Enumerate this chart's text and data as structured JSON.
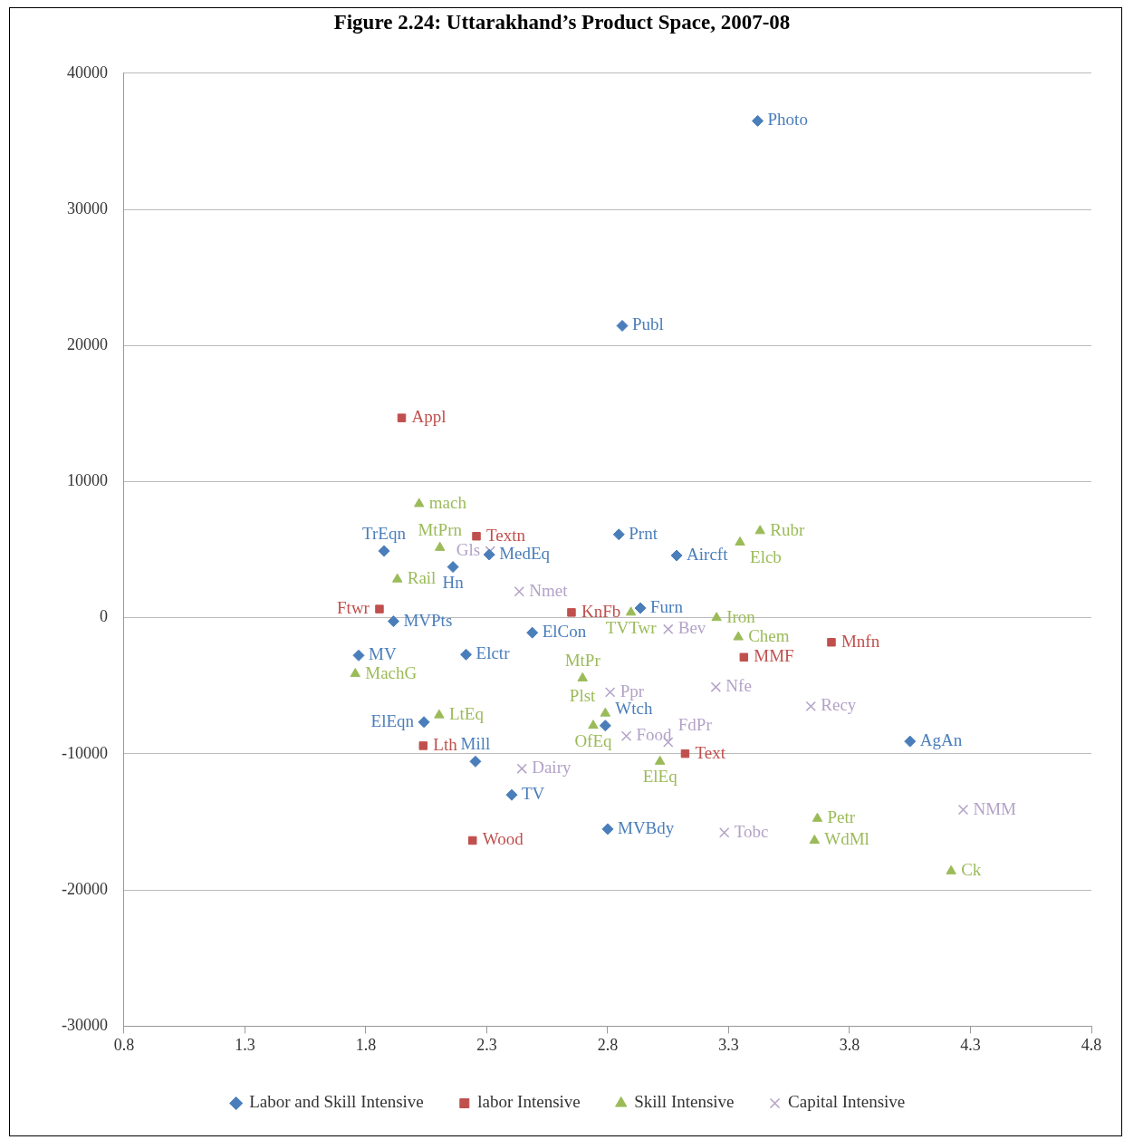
{
  "chart_data": {
    "type": "scatter",
    "title": "Figure 2.24: Uttarakhand’s Product Space, 2007-08",
    "xlim": [
      0.8,
      4.8
    ],
    "xticks": [
      0.8,
      1.3,
      1.8,
      2.3,
      2.8,
      3.3,
      3.8,
      4.3,
      4.8
    ],
    "ylim": [
      -30000,
      40000
    ],
    "yticks": [
      -30000,
      -20000,
      -10000,
      0,
      10000,
      20000,
      30000,
      40000
    ],
    "grid": "y",
    "legend": "bottom",
    "series": [
      {
        "name": "Labor and Skill Intensive",
        "color": "#4a7ebb",
        "marker": "diamond",
        "x": [
          3.42,
          2.86,
          1.875,
          2.16,
          2.31,
          2.846,
          3.085,
          2.935,
          1.914,
          2.488,
          1.77,
          2.214,
          2.04,
          2.79,
          2.253,
          2.403,
          2.8,
          4.05
        ],
        "values": [
          36500,
          21450,
          4900,
          3735,
          4640,
          6120,
          4570,
          710,
          -260,
          -1095,
          -2770,
          -2700,
          -7660,
          -7920,
          -10560,
          -13010,
          -15520,
          -9080
        ],
        "value_labels": [
          "Photo",
          "Publ",
          "TrEqn",
          "Hn",
          "MedEq",
          "Prnt",
          "Aircft",
          "Furn",
          "MVPts",
          "ElCon",
          "MV",
          "Elctr",
          "ElEqn",
          "Wtch",
          "Mill",
          "TV",
          "MVBdy",
          "AgAn"
        ]
      },
      {
        "name": "labor Intensive",
        "color": "#c0504d",
        "marker": "square",
        "x": [
          1.948,
          2.257,
          1.856,
          2.65,
          3.725,
          3.363,
          2.037,
          3.12,
          2.241
        ],
        "values": [
          14680,
          5990,
          640,
          390,
          -1800,
          -2900,
          -9400,
          -9980,
          -16360
        ],
        "value_labels": [
          "Appl",
          "Textn",
          "Ftwr",
          "KnFb",
          "Mnfn",
          "MMF",
          "Lth",
          "Text",
          "Wood"
        ]
      },
      {
        "name": "Skill Intensive",
        "color": "#9bbb59",
        "marker": "triangle",
        "x": [
          2.02,
          2.106,
          1.93,
          3.43,
          3.347,
          2.896,
          3.25,
          3.34,
          1.756,
          2.696,
          2.103,
          2.79,
          2.74,
          3.016,
          3.667,
          3.655,
          4.22
        ],
        "values": [
          8370,
          5150,
          2830,
          6380,
          5540,
          390,
          0,
          -1420,
          -4120,
          -4440,
          -7150,
          -7020,
          -7920,
          -10560,
          -14750,
          -16360,
          -18610
        ],
        "value_labels": [
          "mach",
          "MtPrn",
          "Rail",
          "Rubr",
          "Elcb",
          "TVTwr",
          "Iron",
          "Chem",
          "MachG",
          "MtPr",
          "LtEq",
          "Plst",
          "OfEq",
          "ElEq",
          "Petr",
          "WdMl",
          "Ck"
        ]
      },
      {
        "name": "Capital Intensive",
        "color": "#b3a2c7",
        "marker": "cross",
        "x": [
          2.314,
          2.434,
          3.05,
          3.247,
          3.64,
          2.81,
          2.877,
          3.05,
          2.445,
          3.282,
          4.27
        ],
        "values": [
          4900,
          1930,
          -840,
          -5090,
          -6500,
          -5470,
          -8690,
          -9140,
          -11080,
          -15780,
          -14100
        ],
        "value_labels": [
          "Gls",
          "Nmet",
          "Bev",
          "Nfe",
          "Recy",
          "Ppr",
          "Food",
          "FdPr",
          "Dairy",
          "Tobc",
          "NMM"
        ]
      }
    ]
  }
}
